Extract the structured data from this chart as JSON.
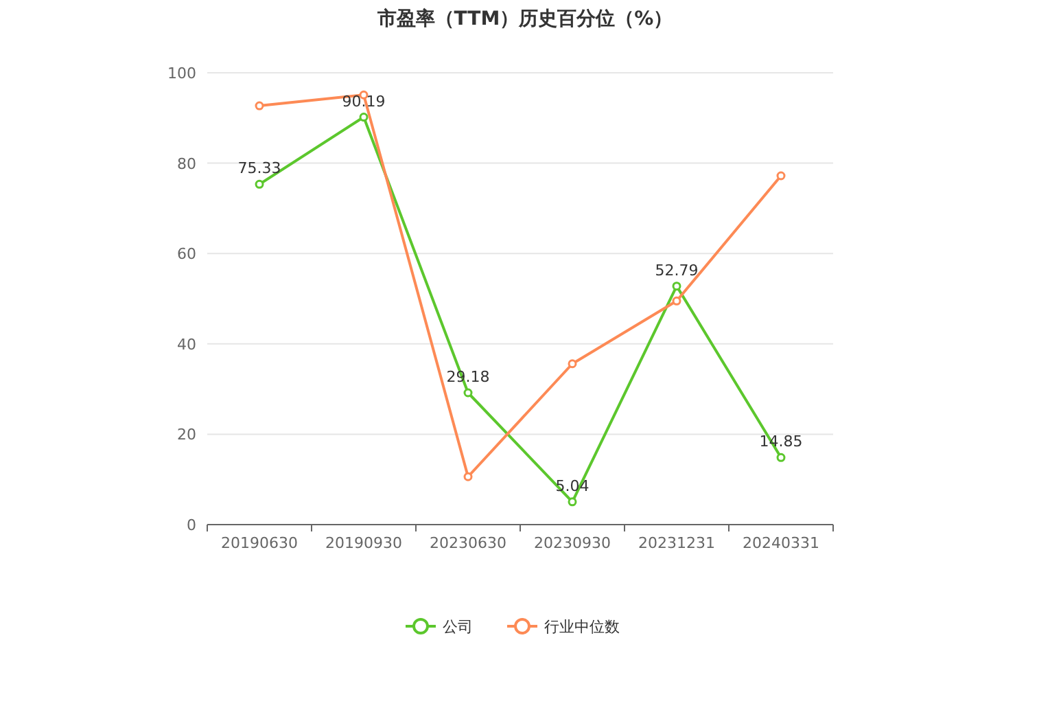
{
  "chart_data": {
    "type": "line",
    "title": "市盈率（TTM）历史百分位（%）",
    "categories": [
      "20190630",
      "20190930",
      "20230630",
      "20230930",
      "20231231",
      "20240331"
    ],
    "series": [
      {
        "name": "公司",
        "color": "#5cc72d",
        "values": [
          75.33,
          90.19,
          29.18,
          5.04,
          52.79,
          14.85
        ],
        "value_labels": [
          "75.33",
          "90.19",
          "29.18",
          "5.04",
          "52.79",
          "14.85"
        ]
      },
      {
        "name": "行业中位数",
        "color": "#fd8a55",
        "values": [
          92.7,
          95.1,
          10.6,
          35.6,
          49.5,
          77.2
        ]
      }
    ],
    "ylim": [
      0,
      100
    ],
    "yticks": [
      0,
      20,
      40,
      60,
      80,
      100
    ],
    "grid": "y",
    "legend": "bottom",
    "marker": "circle",
    "line_style": "solid"
  }
}
